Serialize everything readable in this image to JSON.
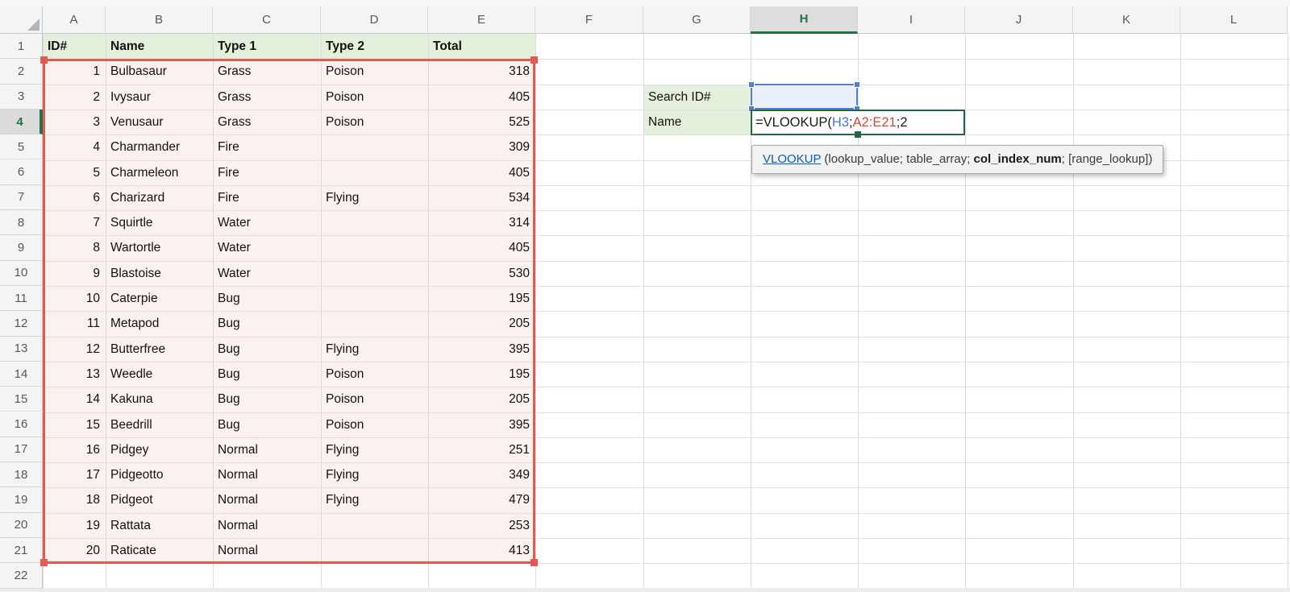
{
  "grid": {
    "column_letters": [
      "A",
      "B",
      "C",
      "D",
      "E",
      "F",
      "G",
      "H",
      "I",
      "J",
      "K",
      "L"
    ],
    "row_numbers": [
      1,
      2,
      3,
      4,
      5,
      6,
      7,
      8,
      9,
      10,
      11,
      12,
      13,
      14,
      15,
      16,
      17,
      18,
      19,
      20,
      21,
      22
    ],
    "selected_column": "H",
    "selected_row": 4
  },
  "table": {
    "headers": [
      "ID#",
      "Name",
      "Type 1",
      "Type 2",
      "Total"
    ],
    "rows": [
      [
        1,
        "Bulbasaur",
        "Grass",
        "Poison",
        318
      ],
      [
        2,
        "Ivysaur",
        "Grass",
        "Poison",
        405
      ],
      [
        3,
        "Venusaur",
        "Grass",
        "Poison",
        525
      ],
      [
        4,
        "Charmander",
        "Fire",
        "",
        309
      ],
      [
        5,
        "Charmeleon",
        "Fire",
        "",
        405
      ],
      [
        6,
        "Charizard",
        "Fire",
        "Flying",
        534
      ],
      [
        7,
        "Squirtle",
        "Water",
        "",
        314
      ],
      [
        8,
        "Wartortle",
        "Water",
        "",
        405
      ],
      [
        9,
        "Blastoise",
        "Water",
        "",
        530
      ],
      [
        10,
        "Caterpie",
        "Bug",
        "",
        195
      ],
      [
        11,
        "Metapod",
        "Bug",
        "",
        205
      ],
      [
        12,
        "Butterfree",
        "Bug",
        "Flying",
        395
      ],
      [
        13,
        "Weedle",
        "Bug",
        "Poison",
        195
      ],
      [
        14,
        "Kakuna",
        "Bug",
        "Poison",
        205
      ],
      [
        15,
        "Beedrill",
        "Bug",
        "Poison",
        395
      ],
      [
        16,
        "Pidgey",
        "Normal",
        "Flying",
        251
      ],
      [
        17,
        "Pidgeotto",
        "Normal",
        "Flying",
        349
      ],
      [
        18,
        "Pidgeot",
        "Normal",
        "Flying",
        479
      ],
      [
        19,
        "Rattata",
        "Normal",
        "",
        253
      ],
      [
        20,
        "Raticate",
        "Normal",
        "",
        413
      ]
    ]
  },
  "lookup_panel": {
    "search_label": "Search ID#",
    "name_label": "Name",
    "formula_parts": [
      {
        "text": "=VLOOKUP(",
        "color": "#1a1a1a"
      },
      {
        "text": "H3",
        "color": "#4472d4"
      },
      {
        "text": ";",
        "color": "#1a1a1a"
      },
      {
        "text": "A2:E21",
        "color": "#cf4a3d"
      },
      {
        "text": ";2",
        "color": "#1a1a1a"
      }
    ],
    "tooltip": {
      "function_link": "VLOOKUP",
      "before_bold": " (lookup_value; table_array; ",
      "bold_arg": "col_index_num",
      "after_bold": "; [range_lookup])"
    }
  },
  "colors": {
    "accent_green": "#217346",
    "header_fill_green": "#e4efdc",
    "range_fill_pink": "#fbf1ef",
    "range_border_red": "#e25b52",
    "selected_cell_border_blue": "#5580cd",
    "selected_cell_fill_blue": "#e9effb",
    "formula_border_green": "#206a42",
    "tooltip_link_blue": "#0b5bc4"
  }
}
